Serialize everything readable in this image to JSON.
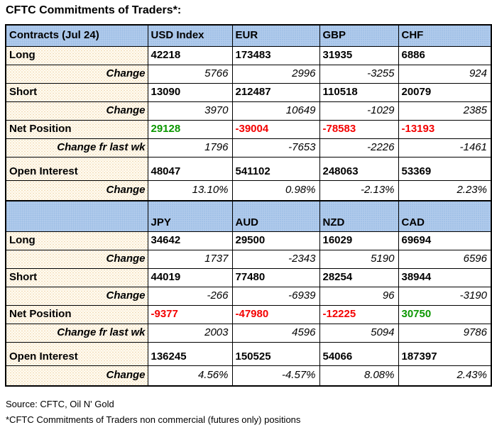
{
  "title": "CFTC Commitments of Traders*:",
  "colors": {
    "header_bg": "#aac7e9",
    "label_bg": "#fdf5e1",
    "positive_value": "#0b9700",
    "negative_value": "#f40000"
  },
  "sections": [
    {
      "header": [
        "Contracts (Jul 24)",
        "USD Index",
        "EUR",
        "GBP",
        "CHF"
      ],
      "long": {
        "label": "Long",
        "values": [
          "42218",
          "173483",
          "31935",
          "6886"
        ]
      },
      "long_change": {
        "label": "Change",
        "values": [
          "5766",
          "2996",
          "-3255",
          "924"
        ]
      },
      "short": {
        "label": "Short",
        "values": [
          "13090",
          "212487",
          "110518",
          "20079"
        ]
      },
      "short_change": {
        "label": "Change",
        "values": [
          "3970",
          "10649",
          "-1029",
          "2385"
        ]
      },
      "net_position": {
        "label": "Net Position",
        "values": [
          "29128",
          "-39004",
          "-78583",
          "-13193"
        ]
      },
      "net_change": {
        "label": "Change fr last wk",
        "values": [
          "1796",
          "-7653",
          "-2226",
          "-1461"
        ]
      },
      "open_interest": {
        "label": "Open Interest",
        "values": [
          "48047",
          "541102",
          "248063",
          "53369"
        ]
      },
      "oi_change": {
        "label": "Change",
        "values": [
          "13.10%",
          "0.98%",
          "-2.13%",
          "2.23%"
        ]
      }
    },
    {
      "header": [
        "",
        "JPY",
        "AUD",
        "NZD",
        "CAD"
      ],
      "long": {
        "label": "Long",
        "values": [
          "34642",
          "29500",
          "16029",
          "69694"
        ]
      },
      "long_change": {
        "label": "Change",
        "values": [
          "1737",
          "-2343",
          "5190",
          "6596"
        ]
      },
      "short": {
        "label": "Short",
        "values": [
          "44019",
          "77480",
          "28254",
          "38944"
        ]
      },
      "short_change": {
        "label": "Change",
        "values": [
          "-266",
          "-6939",
          "96",
          "-3190"
        ]
      },
      "net_position": {
        "label": "Net Position",
        "values": [
          "-9377",
          "-47980",
          "-12225",
          "30750"
        ]
      },
      "net_change": {
        "label": "Change fr last wk",
        "values": [
          "2003",
          "4596",
          "5094",
          "9786"
        ]
      },
      "open_interest": {
        "label": "Open Interest",
        "values": [
          "136245",
          "150525",
          "54066",
          "187397"
        ]
      },
      "oi_change": {
        "label": "Change",
        "values": [
          "4.56%",
          "-4.57%",
          "8.08%",
          "2.43%"
        ]
      }
    }
  ],
  "footer": {
    "source": "Source: CFTC, Oil N' Gold",
    "note": "*CFTC Commitments of Traders non commercial (futures only) positions"
  }
}
